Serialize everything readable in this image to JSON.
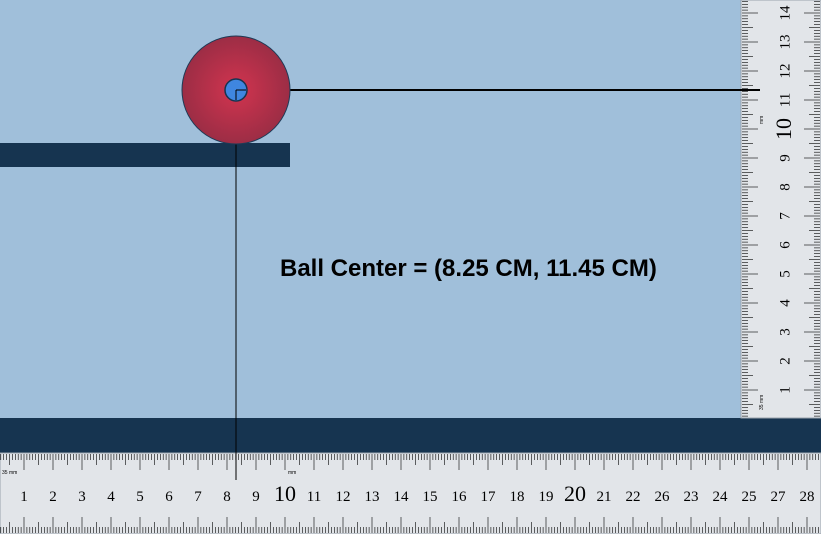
{
  "colors": {
    "background": "#a0bfda",
    "ledge": "#163450",
    "floor": "#163450",
    "ball_outer": "#9c2d45",
    "ball_inner": "#d2344f",
    "ball_marker": "#3f86e0",
    "ruler_face": "#e2e5e9",
    "ruler_text": "#000000"
  },
  "readout": {
    "label": "Ball Center = (8.25 CM, 11.45 CM)"
  },
  "ball_center": {
    "x_cm": 8.25,
    "y_cm": 11.45
  },
  "horizontal_ruler": {
    "unit_labels": [
      "1",
      "2",
      "3",
      "4",
      "5",
      "6",
      "7",
      "8",
      "9",
      "10",
      "11",
      "12",
      "13",
      "14",
      "15",
      "16",
      "17",
      "18",
      "19",
      "20",
      "21",
      "22",
      "26",
      "23",
      "24",
      "25",
      "27",
      "28"
    ],
    "small_text_left": "35 mm",
    "small_text_mid": "mm"
  },
  "vertical_ruler": {
    "unit_labels": [
      "1",
      "2",
      "3",
      "4",
      "5",
      "6",
      "7",
      "8",
      "9",
      "10",
      "11",
      "12",
      "13",
      "14"
    ],
    "small_text_bottom": "35 mm",
    "small_text_mid": "mm"
  },
  "icons": [
    "ball-icon",
    "center-marker-icon"
  ]
}
